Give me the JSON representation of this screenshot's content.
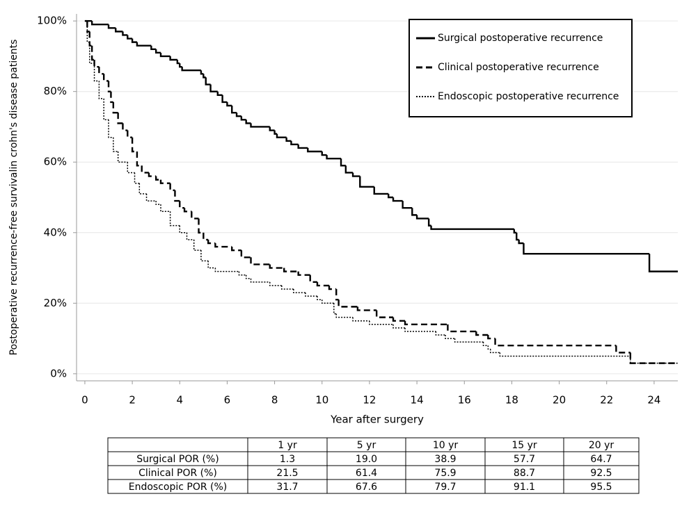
{
  "chart_data": {
    "type": "step",
    "ylabel": "Postoperative recurrence-free survivalin crohn's disease patients",
    "xlabel": "Year after surgery",
    "xlim": [
      -0.35,
      25
    ],
    "xticks": [
      0,
      2,
      4,
      6,
      8,
      10,
      12,
      14,
      16,
      18,
      20,
      22,
      24
    ],
    "ylim": [
      -2,
      102
    ],
    "yticks": [
      {
        "value": 0,
        "label": "0%"
      },
      {
        "value": 20,
        "label": "20%"
      },
      {
        "value": 40,
        "label": "40%"
      },
      {
        "value": 60,
        "label": "60%"
      },
      {
        "value": 80,
        "label": "80%"
      },
      {
        "value": 100,
        "label": "100%"
      }
    ],
    "grid": true,
    "legend": "upper right",
    "series": [
      {
        "name": "Surgical postoperative recurrence",
        "color": "#000000",
        "dash": "solid",
        "x": [
          0,
          0.3,
          1.0,
          1.3,
          1.6,
          1.8,
          2.0,
          2.2,
          2.8,
          3.0,
          3.2,
          3.6,
          3.9,
          4.0,
          4.1,
          4.9,
          5.0,
          5.1,
          5.3,
          5.6,
          5.8,
          6.0,
          6.2,
          6.4,
          6.6,
          6.8,
          7.0,
          7.8,
          8.0,
          8.1,
          8.5,
          8.7,
          9.0,
          9.4,
          10.0,
          10.2,
          10.8,
          11.0,
          11.3,
          11.6,
          12.2,
          12.8,
          13.0,
          13.4,
          13.8,
          14.0,
          14.5,
          14.6,
          18.1,
          18.2,
          18.3,
          18.5,
          23.8,
          25
        ],
        "values": [
          100,
          99,
          98,
          97,
          96,
          95,
          94,
          93,
          92,
          91,
          90,
          89,
          88,
          87,
          86,
          85,
          84,
          82,
          80,
          79,
          77,
          76,
          74,
          73,
          72,
          71,
          70,
          69,
          68,
          67,
          66,
          65,
          64,
          63,
          62,
          61,
          59,
          57,
          56,
          53,
          51,
          50,
          49,
          47,
          45,
          44,
          42,
          41,
          40,
          38,
          37,
          34,
          29,
          29
        ]
      },
      {
        "name": "Clinical postoperative recurrence",
        "color": "#000000",
        "dash": "dashed",
        "x": [
          0,
          0.1,
          0.2,
          0.3,
          0.4,
          0.6,
          0.8,
          1.0,
          1.1,
          1.2,
          1.4,
          1.6,
          1.8,
          2.0,
          2.2,
          2.4,
          2.7,
          3.0,
          3.2,
          3.6,
          3.8,
          4.0,
          4.2,
          4.5,
          4.8,
          5.0,
          5.2,
          5.5,
          6.2,
          6.6,
          7.0,
          7.8,
          8.4,
          9.0,
          9.5,
          9.8,
          10.3,
          10.6,
          10.7,
          11.5,
          12.3,
          13.0,
          13.5,
          15.3,
          16.5,
          17.0,
          17.3,
          22.4,
          23.0,
          25
        ],
        "values": [
          100,
          97,
          93,
          89,
          87,
          85,
          83,
          80,
          77,
          74,
          71,
          69,
          67,
          63,
          59,
          57,
          56,
          55,
          54,
          52,
          49,
          47,
          46,
          44,
          40,
          38,
          37,
          36,
          35,
          33,
          31,
          30,
          29,
          28,
          26,
          25,
          24,
          21,
          19,
          18,
          16,
          15,
          14,
          12,
          11,
          10,
          8,
          6,
          3,
          3
        ]
      },
      {
        "name": "Endoscopic postoperative recurrence",
        "color": "#000000",
        "dash": "dotted",
        "x": [
          0,
          0.1,
          0.2,
          0.4,
          0.6,
          0.8,
          1.0,
          1.2,
          1.4,
          1.8,
          2.1,
          2.3,
          2.6,
          3.0,
          3.2,
          3.6,
          4.0,
          4.3,
          4.6,
          4.9,
          5.2,
          5.5,
          6.5,
          6.8,
          7.0,
          7.8,
          8.3,
          8.8,
          9.3,
          9.8,
          10.0,
          10.5,
          10.6,
          11.3,
          12.0,
          13.0,
          13.5,
          14.8,
          15.2,
          15.6,
          16.8,
          17.0,
          17.1,
          17.5,
          23.0,
          25
        ],
        "values": [
          100,
          94,
          88,
          83,
          78,
          72,
          67,
          63,
          60,
          57,
          54,
          51,
          49,
          48,
          46,
          42,
          40,
          38,
          35,
          32,
          30,
          29,
          28,
          27,
          26,
          25,
          24,
          23,
          22,
          21,
          20,
          17,
          16,
          15,
          14,
          13,
          12,
          11,
          10,
          9,
          8,
          7,
          6,
          5,
          3,
          3
        ]
      }
    ]
  },
  "table": {
    "columns": [
      "1 yr",
      "5 yr",
      "10 yr",
      "15 yr",
      "20 yr"
    ],
    "rows": [
      {
        "label": "Surgical POR (%)",
        "values": [
          "1.3",
          "19.0",
          "38.9",
          "57.7",
          "64.7"
        ]
      },
      {
        "label": "Clinical POR (%)",
        "values": [
          "21.5",
          "61.4",
          "75.9",
          "88.7",
          "92.5"
        ]
      },
      {
        "label": "Endoscopic POR (%)",
        "values": [
          "31.7",
          "67.6",
          "79.7",
          "91.1",
          "95.5"
        ]
      }
    ]
  }
}
